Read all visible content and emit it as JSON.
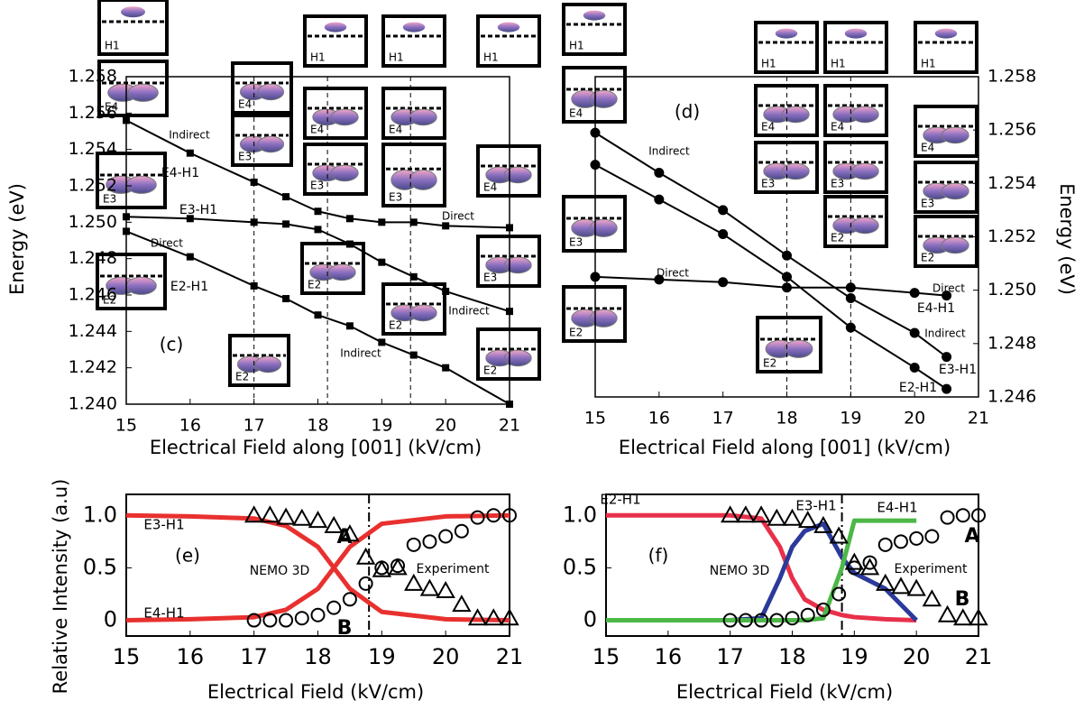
{
  "chart_data": [
    {
      "type": "line",
      "xlabel": "Electrical Field along [001] (kV/cm)",
      "ylabel": "Energy (eV)",
      "x": [
        15,
        16,
        17,
        17.5,
        18,
        18.5,
        19,
        19.5,
        20,
        21
      ],
      "series": [
        {
          "name": "E4-H1",
          "color": "#000000",
          "marker": "square",
          "values": [
            1.2556,
            1.2538,
            1.2522,
            1.2514,
            1.2506,
            1.2502,
            1.25,
            1.25,
            1.2498,
            1.2497
          ]
        },
        {
          "name": "E3-H1",
          "color": "#000000",
          "marker": "square",
          "values": [
            1.2503,
            1.2502,
            1.25,
            1.2499,
            1.2496,
            1.2488,
            1.2478,
            1.247,
            1.2462,
            1.2451
          ]
        },
        {
          "name": "E2-H1",
          "color": "#000000",
          "marker": "square",
          "values": [
            1.2495,
            1.2481,
            1.2465,
            1.2458,
            1.2449,
            1.2443,
            1.2434,
            1.2427,
            1.242,
            1.24
          ]
        }
      ],
      "xlim": [
        15,
        21
      ],
      "ylim": [
        1.24,
        1.258
      ],
      "xticks": [
        15,
        16,
        17,
        18,
        19,
        20,
        21
      ],
      "yticks": [
        {
          "value": 1.24,
          "label": "1.240"
        },
        1.242,
        1.244,
        1.246,
        1.248,
        {
          "value": 1.25,
          "label": "1.250"
        },
        1.252,
        1.254,
        1.256,
        1.258
      ],
      "vlines": [
        17,
        18.15,
        19.45
      ],
      "annotations": [
        "Indirect",
        "Direct",
        "Direct",
        "Indirect",
        "Indirect",
        "(c)"
      ],
      "insets": [
        "H1",
        "E4",
        "E3",
        "E2",
        "E4",
        "E3",
        "E2",
        "H1",
        "E4",
        "E3",
        "E2",
        "H1",
        "E4",
        "E3",
        "E2",
        "H1",
        "E4",
        "E3",
        "E2"
      ]
    },
    {
      "type": "line",
      "xlabel": "Electrical Field along [001] (kV/cm)",
      "y2label": "Energy (eV)",
      "x": [
        15,
        16,
        17,
        18,
        19,
        20,
        20.5
      ],
      "series": [
        {
          "name": "E4-H1",
          "color": "#000000",
          "marker": "circle",
          "axis": "y2",
          "values": [
            1.2505,
            1.2504,
            1.2503,
            1.2501,
            1.2501,
            1.2499,
            1.2498
          ]
        },
        {
          "name": "E3-H1",
          "color": "#000000",
          "marker": "circle",
          "axis": "y2",
          "values": [
            1.2559,
            1.2544,
            1.253,
            1.2513,
            1.2497,
            1.2484,
            1.2475
          ]
        },
        {
          "name": "E2-H1",
          "color": "#000000",
          "marker": "circle",
          "axis": "y2",
          "values": [
            1.2547,
            1.2534,
            1.2521,
            1.2505,
            1.2486,
            1.2471,
            1.2463
          ]
        }
      ],
      "xlim": [
        15,
        21
      ],
      "y2lim": [
        1.246,
        1.258
      ],
      "xticks": [
        15,
        16,
        17,
        18,
        19,
        20,
        21
      ],
      "y2ticks": [
        1.246,
        1.248,
        {
          "value": 1.25,
          "label": "1.250"
        },
        1.252,
        1.254,
        1.256,
        1.258
      ],
      "vlines": [
        18,
        19
      ],
      "annotations": [
        "(d)",
        "Indirect",
        "Direct",
        "Direct",
        "Indirect"
      ],
      "insets": [
        "H1",
        "E4",
        "E3",
        "E2",
        "E2",
        "H1",
        "E4",
        "E3",
        "H1",
        "E4",
        "E3",
        "E2",
        "H1",
        "E4",
        "E3",
        "E2"
      ]
    },
    {
      "type": "line",
      "xlabel": "Electrical Field (kV/cm)",
      "ylabel": "Relative Intensity (a.u)",
      "x": [
        15,
        16,
        17,
        17.5,
        18,
        18.25,
        18.5,
        19,
        20,
        21
      ],
      "series": [
        {
          "name": "E3-H1",
          "color": "#e8312f",
          "values": [
            1.0,
            0.99,
            0.97,
            0.9,
            0.7,
            0.5,
            0.3,
            0.08,
            0.01,
            0
          ]
        },
        {
          "name": "E4-H1",
          "color": "#e8312f",
          "values": [
            0,
            0.01,
            0.03,
            0.1,
            0.3,
            0.5,
            0.7,
            0.92,
            0.99,
            1.0
          ]
        },
        {
          "name": "A",
          "color": "#000000",
          "marker": "triangle",
          "line": false,
          "x": [
            17,
            17.25,
            17.5,
            17.75,
            18,
            18.25,
            18.5,
            18.75,
            19,
            19.25,
            19.5,
            19.75,
            20,
            20.25,
            20.5,
            20.75,
            21
          ],
          "values": [
            1.0,
            1.0,
            0.98,
            0.97,
            0.95,
            0.9,
            0.82,
            0.6,
            0.48,
            0.5,
            0.35,
            0.3,
            0.28,
            0.15,
            0.02,
            0.02,
            0.02
          ]
        },
        {
          "name": "B",
          "color": "#000000",
          "marker": "circle",
          "line": false,
          "x": [
            17,
            17.25,
            17.5,
            17.75,
            18,
            18.25,
            18.5,
            18.75,
            19,
            19.25,
            19.5,
            19.75,
            20,
            20.25,
            20.5,
            20.75,
            21
          ],
          "values": [
            0,
            0,
            0,
            0.02,
            0.05,
            0.12,
            0.2,
            0.35,
            0.5,
            0.52,
            0.72,
            0.75,
            0.8,
            0.85,
            0.98,
            1.0,
            1.0
          ]
        }
      ],
      "xlim": [
        15,
        21
      ],
      "ylim": [
        -0.15,
        1.2
      ],
      "xticks": [
        15,
        16,
        17,
        18,
        19,
        20,
        21
      ],
      "yticks": [
        0,
        0.5,
        {
          "value": 1,
          "label": "1.0"
        }
      ],
      "vlines": [
        18.8
      ],
      "annotations": [
        "(e)",
        "NEMO 3D",
        "Experiment"
      ]
    },
    {
      "type": "line",
      "xlabel": "Electrical Field (kV/cm)",
      "x": [
        15,
        16,
        17,
        17.5,
        17.8,
        18,
        18.2,
        18.5,
        18.8,
        19,
        19.5,
        20
      ],
      "series": [
        {
          "name": "E2-H1",
          "color": "#e8304a",
          "values": [
            1,
            1,
            1,
            0.97,
            0.7,
            0.4,
            0.2,
            0.1,
            0.05,
            0.03,
            0.01,
            0
          ]
        },
        {
          "name": "E3-H1",
          "color": "#2b3a9a",
          "values": [
            0,
            0,
            0,
            0.02,
            0.4,
            0.7,
            0.85,
            0.92,
            0.6,
            0.45,
            0.3,
            0
          ]
        },
        {
          "name": "E4-H1",
          "color": "#4cb847",
          "values": [
            0,
            0,
            0,
            0,
            0,
            0,
            0,
            0.02,
            0.5,
            0.95,
            0.95,
            0.95
          ]
        },
        {
          "name": "A",
          "color": "#000000",
          "marker": "circle",
          "line": false,
          "x": [
            17,
            17.25,
            17.5,
            17.75,
            18,
            18.25,
            18.5,
            18.75,
            19,
            19.25,
            19.5,
            19.75,
            20,
            20.25,
            20.5,
            20.75,
            21
          ],
          "values": [
            0,
            0,
            0,
            0,
            0.02,
            0.05,
            0.1,
            0.25,
            0.5,
            0.55,
            0.72,
            0.75,
            0.78,
            0.8,
            0.98,
            1.0,
            1.0
          ]
        },
        {
          "name": "B",
          "color": "#000000",
          "marker": "triangle",
          "line": false,
          "x": [
            17,
            17.25,
            17.5,
            17.75,
            18,
            18.25,
            18.5,
            18.75,
            19,
            19.25,
            19.5,
            19.75,
            20,
            20.25,
            20.5,
            20.75,
            21
          ],
          "values": [
            1,
            1,
            1,
            0.97,
            0.97,
            0.95,
            0.9,
            0.8,
            0.55,
            0.5,
            0.35,
            0.32,
            0.3,
            0.2,
            0.05,
            0.02,
            0.02
          ]
        }
      ],
      "xlim": [
        15,
        21
      ],
      "ylim": [
        -0.15,
        1.2
      ],
      "xticks": [
        15,
        16,
        17,
        18,
        19,
        20,
        21
      ],
      "yticks": [
        0,
        0.5,
        {
          "value": 1,
          "label": "1.0"
        }
      ],
      "vlines": [
        18.8
      ],
      "annotations": [
        "(f)",
        "NEMO 3D",
        "Experiment"
      ]
    }
  ]
}
